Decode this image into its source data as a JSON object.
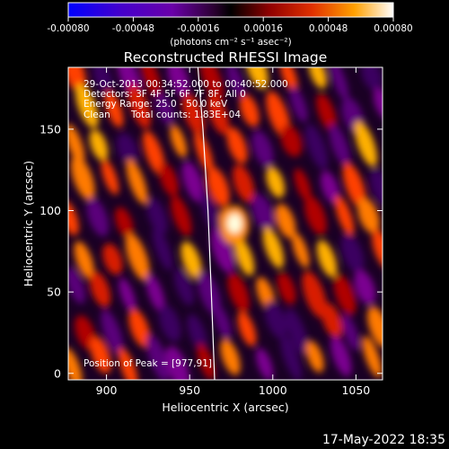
{
  "chart_data": {
    "type": "heatmap",
    "title": "Reconstructed RHESSI Image",
    "xlabel": "Heliocentric X (arcsec)",
    "ylabel": "Heliocentric Y (arcsec)",
    "xlim": [
      877,
      1066
    ],
    "ylim": [
      -4,
      188
    ],
    "x_ticks": [
      "900",
      "950",
      "1000",
      "1050"
    ],
    "x_tick_values": [
      900,
      950,
      1000,
      1050
    ],
    "y_ticks": [
      "0",
      "50",
      "100",
      "150"
    ],
    "y_tick_values": [
      0,
      50,
      100,
      150
    ],
    "colorbar": {
      "ticks": [
        "-0.00080",
        "-0.00048",
        "-0.00016",
        "0.00016",
        "0.00048",
        "0.00080"
      ],
      "tick_values": [
        -0.0008,
        -0.00048,
        -0.00016,
        0.00016,
        0.00048,
        0.0008
      ],
      "range": [
        -0.0008,
        0.0008
      ],
      "unit_label": "(photons cm⁻² s⁻¹ asec⁻²)",
      "colormap": [
        "#0000ff",
        "#6a00a8",
        "#2a002a",
        "#000000",
        "#7a0000",
        "#e03000",
        "#ff9a00",
        "#ffffff"
      ]
    },
    "annotations": {
      "time_range": "29-Oct-2013 00:34:52.000 to 00:40:52.000",
      "detectors": "Detectors: 3F 4F 5F 6F 7F 8F, All 0",
      "energy_range": "Energy Range: 25.0 - 50.0 keV",
      "method": "Clean",
      "total_counts": "Total counts: 1.83E+04",
      "peak": "Position of Peak = [977,91]"
    },
    "peak_position": [
      977,
      91
    ],
    "limb_curve": [
      [
        955,
        188
      ],
      [
        958,
        150
      ],
      [
        961,
        100
      ],
      [
        963,
        50
      ],
      [
        965,
        -4
      ]
    ]
  },
  "footer_date": "17-May-2022 18:35"
}
